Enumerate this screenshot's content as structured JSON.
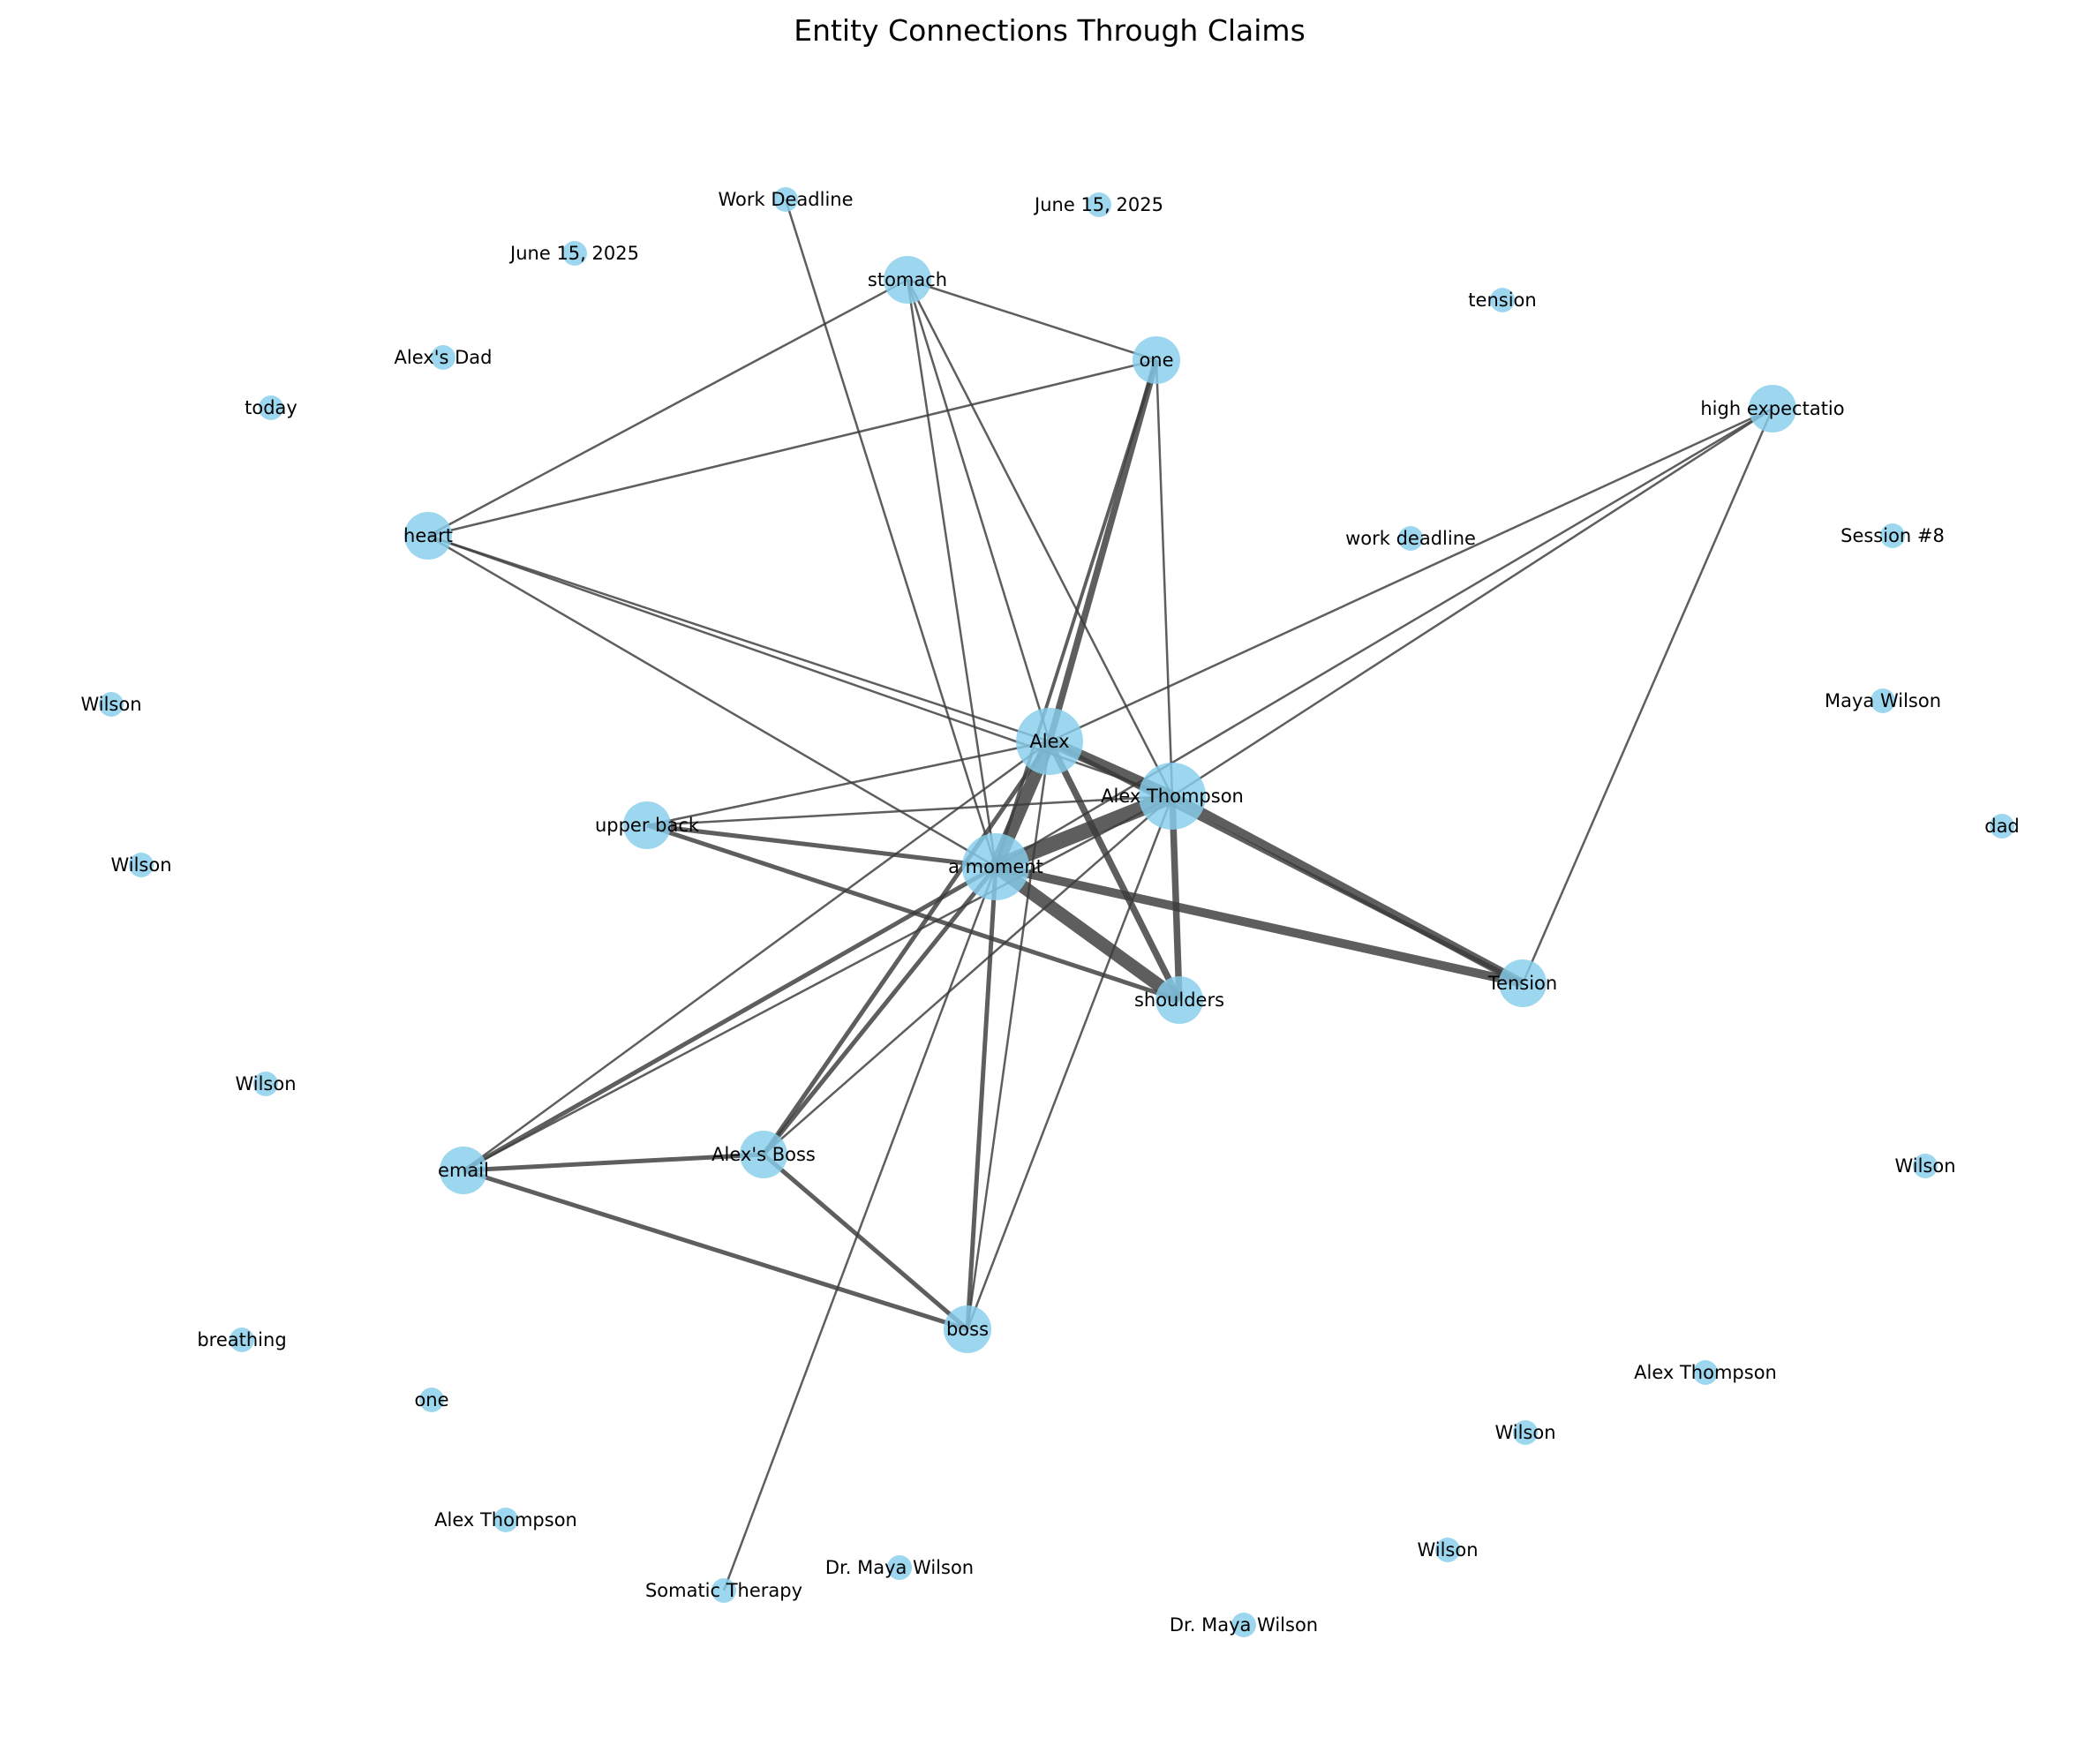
{
  "title": "Entity Connections Through Claims",
  "node_color": "#87ceeb",
  "edge_color": "#3a3a3a",
  "nodes": [
    {
      "id": "alex",
      "label": "Alex",
      "size": "xl"
    },
    {
      "id": "alex_thompson",
      "label": "Alex Thompson",
      "size": "xl"
    },
    {
      "id": "a_moment",
      "label": "a moment",
      "size": "xl"
    },
    {
      "id": "stomach",
      "label": "stomach",
      "size": "l"
    },
    {
      "id": "one_top",
      "label": "one",
      "size": "l"
    },
    {
      "id": "heart",
      "label": "heart",
      "size": "l"
    },
    {
      "id": "upper_back",
      "label": "upper back",
      "size": "l"
    },
    {
      "id": "shoulders",
      "label": "shoulders",
      "size": "l"
    },
    {
      "id": "tension_cap",
      "label": "Tension",
      "size": "l"
    },
    {
      "id": "high_exp",
      "label": "high expectatio",
      "size": "l"
    },
    {
      "id": "email",
      "label": "email",
      "size": "l"
    },
    {
      "id": "alexs_boss",
      "label": "Alex's Boss",
      "size": "l"
    },
    {
      "id": "boss",
      "label": "boss",
      "size": "l"
    },
    {
      "id": "work_deadline_cap",
      "label": "Work Deadline",
      "size": "s"
    },
    {
      "id": "somatic",
      "label": "Somatic Therapy",
      "size": "s"
    },
    {
      "id": "june15_a",
      "label": "June 15, 2025",
      "size": "s"
    },
    {
      "id": "june15_b",
      "label": "June 15, 2025",
      "size": "s"
    },
    {
      "id": "alexs_dad",
      "label": "Alex's Dad",
      "size": "s"
    },
    {
      "id": "today",
      "label": "today",
      "size": "s"
    },
    {
      "id": "tension_low",
      "label": "tension",
      "size": "s"
    },
    {
      "id": "work_deadline_low",
      "label": "work deadline",
      "size": "s"
    },
    {
      "id": "session8",
      "label": "Session #8",
      "size": "s"
    },
    {
      "id": "maya_wilson",
      "label": "Maya Wilson",
      "size": "s"
    },
    {
      "id": "dad",
      "label": "dad",
      "size": "s"
    },
    {
      "id": "wilson_1",
      "label": "Wilson",
      "size": "s"
    },
    {
      "id": "wilson_2",
      "label": "Wilson",
      "size": "s"
    },
    {
      "id": "wilson_3",
      "label": "Wilson",
      "size": "s"
    },
    {
      "id": "wilson_4",
      "label": "Wilson",
      "size": "s"
    },
    {
      "id": "wilson_5",
      "label": "Wilson",
      "size": "s"
    },
    {
      "id": "wilson_6",
      "label": "Wilson",
      "size": "s"
    },
    {
      "id": "breathing",
      "label": "breathing",
      "size": "s"
    },
    {
      "id": "one_low",
      "label": "one",
      "size": "s"
    },
    {
      "id": "alex_thompson_2",
      "label": "Alex Thompson",
      "size": "s"
    },
    {
      "id": "alex_thompson_3",
      "label": "Alex Thompson",
      "size": "s"
    },
    {
      "id": "dr_maya_1",
      "label": "Dr. Maya Wilson",
      "size": "s"
    },
    {
      "id": "dr_maya_2",
      "label": "Dr. Maya Wilson",
      "size": "s"
    }
  ],
  "edges": [
    {
      "source": "a_moment",
      "target": "alex",
      "weight": 6
    },
    {
      "source": "a_moment",
      "target": "alex_thompson",
      "weight": 7
    },
    {
      "source": "alex",
      "target": "alex_thompson",
      "weight": 5
    },
    {
      "source": "a_moment",
      "target": "shoulders",
      "weight": 6
    },
    {
      "source": "alex_thompson",
      "target": "tension_cap",
      "weight": 4
    },
    {
      "source": "alex",
      "target": "tension_cap",
      "weight": 2
    },
    {
      "source": "a_moment",
      "target": "tension_cap",
      "weight": 4
    },
    {
      "source": "alex",
      "target": "shoulders",
      "weight": 3
    },
    {
      "source": "alex_thompson",
      "target": "shoulders",
      "weight": 3
    },
    {
      "source": "alex",
      "target": "one_top",
      "weight": 3
    },
    {
      "source": "a_moment",
      "target": "one_top",
      "weight": 1.5
    },
    {
      "source": "alex_thompson",
      "target": "one_top",
      "weight": 1
    },
    {
      "source": "stomach",
      "target": "one_top",
      "weight": 1
    },
    {
      "source": "stomach",
      "target": "heart",
      "weight": 1
    },
    {
      "source": "stomach",
      "target": "alex",
      "weight": 1
    },
    {
      "source": "stomach",
      "target": "alex_thompson",
      "weight": 1
    },
    {
      "source": "stomach",
      "target": "a_moment",
      "weight": 1
    },
    {
      "source": "heart",
      "target": "one_top",
      "weight": 1
    },
    {
      "source": "heart",
      "target": "alex",
      "weight": 1
    },
    {
      "source": "heart",
      "target": "alex_thompson",
      "weight": 1
    },
    {
      "source": "heart",
      "target": "a_moment",
      "weight": 1
    },
    {
      "source": "high_exp",
      "target": "alex",
      "weight": 1
    },
    {
      "source": "high_exp",
      "target": "alex_thompson",
      "weight": 1
    },
    {
      "source": "high_exp",
      "target": "a_moment",
      "weight": 1
    },
    {
      "source": "high_exp",
      "target": "tension_cap",
      "weight": 1
    },
    {
      "source": "upper_back",
      "target": "alex",
      "weight": 1
    },
    {
      "source": "upper_back",
      "target": "alex_thompson",
      "weight": 1
    },
    {
      "source": "upper_back",
      "target": "a_moment",
      "weight": 2
    },
    {
      "source": "upper_back",
      "target": "shoulders",
      "weight": 2
    },
    {
      "source": "work_deadline_cap",
      "target": "a_moment",
      "weight": 1
    },
    {
      "source": "email",
      "target": "a_moment",
      "weight": 2
    },
    {
      "source": "email",
      "target": "alex",
      "weight": 1
    },
    {
      "source": "email",
      "target": "alex_thompson",
      "weight": 1
    },
    {
      "source": "email",
      "target": "alexs_boss",
      "weight": 2
    },
    {
      "source": "email",
      "target": "boss",
      "weight": 2
    },
    {
      "source": "alexs_boss",
      "target": "a_moment",
      "weight": 2
    },
    {
      "source": "alexs_boss",
      "target": "alex",
      "weight": 2
    },
    {
      "source": "alexs_boss",
      "target": "alex_thompson",
      "weight": 1
    },
    {
      "source": "alexs_boss",
      "target": "boss",
      "weight": 2
    },
    {
      "source": "boss",
      "target": "a_moment",
      "weight": 2
    },
    {
      "source": "boss",
      "target": "alex",
      "weight": 1
    },
    {
      "source": "boss",
      "target": "alex_thompson",
      "weight": 1
    },
    {
      "source": "somatic",
      "target": "a_moment",
      "weight": 1
    }
  ]
}
